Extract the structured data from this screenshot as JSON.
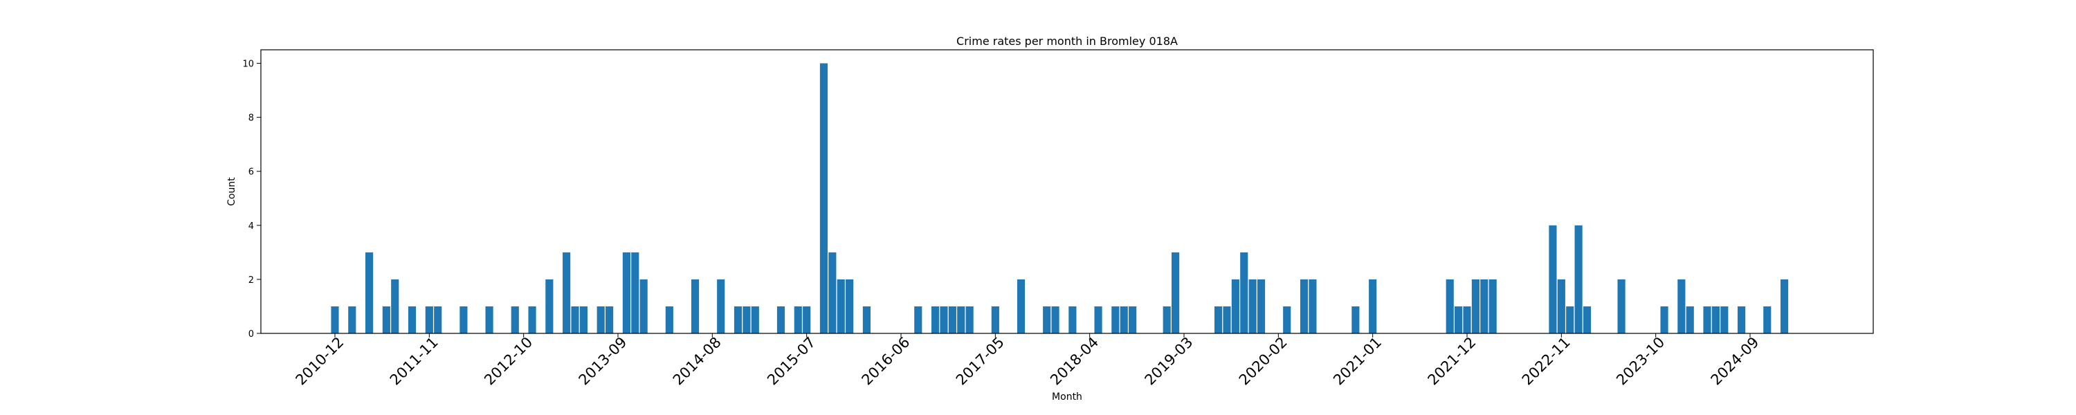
{
  "chart_data": {
    "type": "bar",
    "title": "Crime rates per month in Bromley 018A",
    "xlabel": "Month",
    "ylabel": "Count",
    "ylim": [
      0,
      10.5
    ],
    "y_ticks": [
      0,
      2,
      4,
      6,
      8,
      10
    ],
    "x_ticks": [
      "2010-12",
      "2011-11",
      "2012-10",
      "2013-09",
      "2014-08",
      "2015-07",
      "2016-06",
      "2017-05",
      "2018-04",
      "2019-03",
      "2020-02",
      "2021-01",
      "2021-12",
      "2022-11",
      "2023-10",
      "2024-09"
    ],
    "grid": false,
    "bar_color": "#1f77b4",
    "categories": [
      "2010-12",
      "2011-02",
      "2011-04",
      "2011-06",
      "2011-07",
      "2011-09",
      "2011-11",
      "2011-12",
      "2012-03",
      "2012-06",
      "2012-09",
      "2012-11",
      "2013-01",
      "2013-03",
      "2013-04",
      "2013-05",
      "2013-07",
      "2013-08",
      "2013-10",
      "2013-11",
      "2013-12",
      "2014-03",
      "2014-06",
      "2014-09",
      "2014-11",
      "2014-12",
      "2015-01",
      "2015-04",
      "2015-06",
      "2015-07",
      "2015-09",
      "2015-10",
      "2015-11",
      "2015-12",
      "2016-02",
      "2016-08",
      "2016-10",
      "2016-11",
      "2016-12",
      "2017-01",
      "2017-02",
      "2017-05",
      "2017-08",
      "2017-11",
      "2017-12",
      "2018-02",
      "2018-05",
      "2018-07",
      "2018-08",
      "2018-09",
      "2019-01",
      "2019-02",
      "2019-07",
      "2019-08",
      "2019-09",
      "2019-10",
      "2019-11",
      "2019-12",
      "2020-03",
      "2020-05",
      "2020-06",
      "2020-11",
      "2021-01",
      "2021-10",
      "2021-11",
      "2021-12",
      "2022-01",
      "2022-02",
      "2022-03",
      "2022-10",
      "2022-11",
      "2022-12",
      "2023-01",
      "2023-02",
      "2023-06",
      "2023-11",
      "2024-01",
      "2024-02",
      "2024-04",
      "2024-05",
      "2024-06",
      "2024-08",
      "2024-11",
      "2025-01"
    ],
    "values": [
      1,
      1,
      3,
      1,
      2,
      1,
      1,
      1,
      1,
      1,
      1,
      1,
      2,
      3,
      1,
      1,
      1,
      1,
      3,
      3,
      2,
      1,
      2,
      2,
      1,
      1,
      1,
      1,
      1,
      1,
      10,
      3,
      2,
      2,
      1,
      1,
      1,
      1,
      1,
      1,
      1,
      1,
      2,
      1,
      1,
      1,
      1,
      1,
      1,
      1,
      1,
      3,
      1,
      1,
      2,
      3,
      2,
      2,
      1,
      2,
      2,
      1,
      2,
      2,
      1,
      1,
      2,
      2,
      2,
      4,
      2,
      1,
      4,
      1,
      2,
      1,
      2,
      1,
      1,
      1,
      1,
      1,
      1,
      2
    ]
  }
}
